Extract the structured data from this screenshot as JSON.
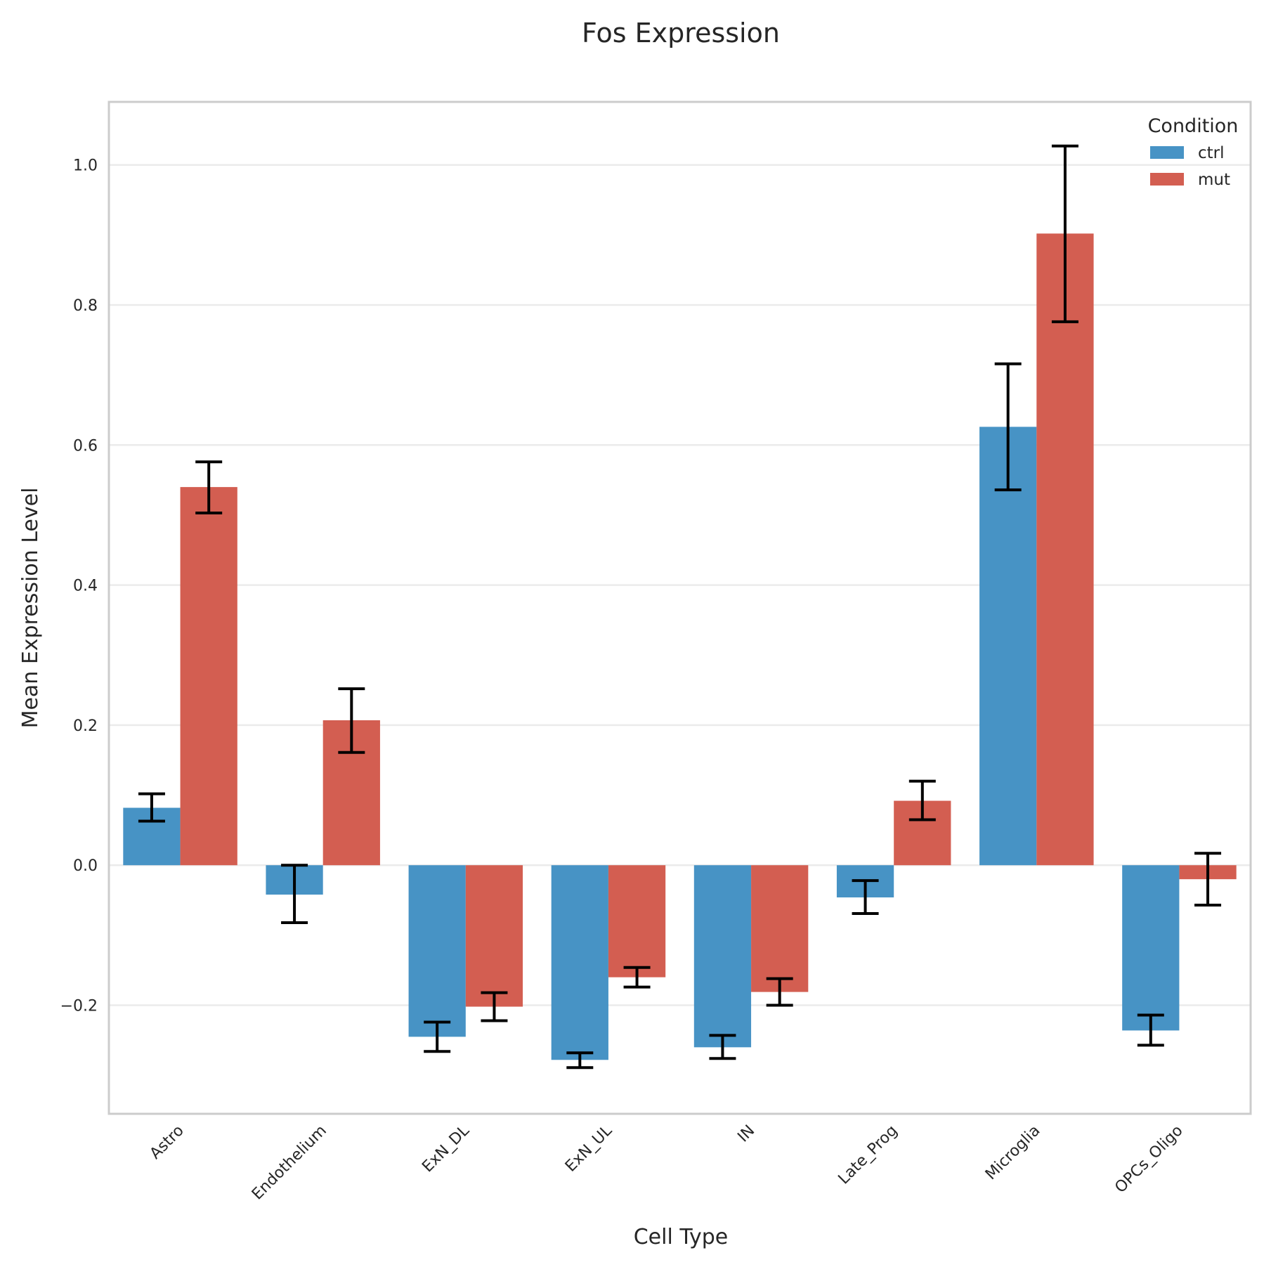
{
  "chart_data": {
    "type": "bar",
    "title": "Fos Expression",
    "xlabel": "Cell Type",
    "ylabel": "Mean Expression Level",
    "categories": [
      "Astro",
      "Endothelium",
      "ExN_DL",
      "ExN_UL",
      "IN",
      "Late_Prog",
      "Microglia",
      "OPCs_Oligo"
    ],
    "series": [
      {
        "name": "ctrl",
        "color": "#4793c5",
        "values": [
          0.082,
          -0.042,
          -0.245,
          -0.278,
          -0.26,
          -0.046,
          0.626,
          -0.236
        ],
        "err_low": [
          0.063,
          -0.082,
          -0.266,
          -0.289,
          -0.276,
          -0.069,
          0.536,
          -0.257
        ],
        "err_high": [
          0.102,
          0.0,
          -0.224,
          -0.268,
          -0.243,
          -0.022,
          0.716,
          -0.214
        ]
      },
      {
        "name": "mut",
        "color": "#d35e51",
        "values": [
          0.54,
          0.207,
          -0.202,
          -0.16,
          -0.181,
          0.092,
          0.902,
          -0.02
        ],
        "err_low": [
          0.503,
          0.161,
          -0.222,
          -0.174,
          -0.2,
          0.065,
          0.776,
          -0.057
        ],
        "err_high": [
          0.576,
          0.252,
          -0.182,
          -0.146,
          -0.162,
          0.12,
          1.027,
          0.017
        ]
      }
    ],
    "yticks": [
      "−0.2",
      "0.0",
      "0.2",
      "0.4",
      "0.6",
      "0.8",
      "1.0"
    ],
    "ytick_values": [
      -0.2,
      0.0,
      0.2,
      0.4,
      0.6,
      0.8,
      1.0
    ],
    "ylim": [
      -0.355,
      1.09
    ],
    "grid": true,
    "legend": {
      "title": "Condition",
      "placement": "top-right"
    }
  }
}
